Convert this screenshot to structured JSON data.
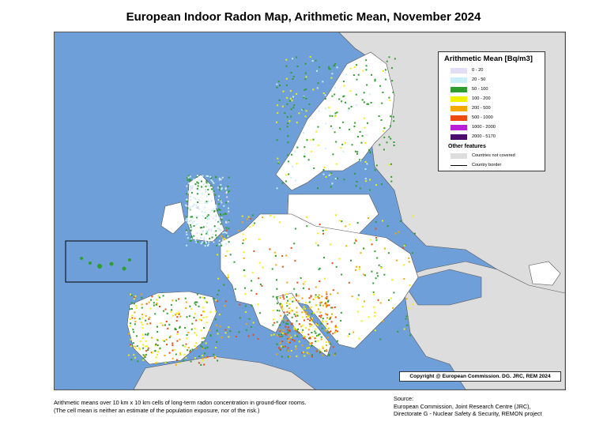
{
  "title": "European Indoor Radon Map, Arithmetic Mean, November 2024",
  "legend": {
    "title": "Arithmetic Mean [Bq/m3]",
    "classes": [
      {
        "label": "0 - 20",
        "color": "#e3dcf5"
      },
      {
        "label": "20 - 50",
        "color": "#c8eef8"
      },
      {
        "label": "50 - 100",
        "color": "#2f9e2f"
      },
      {
        "label": "100 - 200",
        "color": "#f2f200"
      },
      {
        "label": "200 - 500",
        "color": "#f5a800"
      },
      {
        "label": "500 - 1000",
        "color": "#ec4a0e"
      },
      {
        "label": "1000 - 2000",
        "color": "#b81fd6"
      },
      {
        "label": "2000 - 5170",
        "color": "#4b0a6e"
      }
    ],
    "other_title": "Other features",
    "not_covered": {
      "label": "Countries not covered",
      "color": "#dddddd"
    },
    "border": {
      "label": "Country border"
    }
  },
  "colors": {
    "sea": "#6f9fd8",
    "no_data_land": "#ffffff",
    "not_covered_land": "#dddddd"
  },
  "copyright": "Copyright @ European Commission. DG. JRC, REM 2024",
  "note": {
    "line1": "Arithmetic means over 10 km x 10 km cells of long-term radon concentration in ground-floor rooms.",
    "line2": "(The cell mean is neither an estimate of the population exposure, nor of the risk.)"
  },
  "source": {
    "line1": "Source:",
    "line2": "European Commission, Joint Research Centre (JRC),",
    "line3": "Directorate G - Nuclear Safety & Security, REMON project"
  }
}
